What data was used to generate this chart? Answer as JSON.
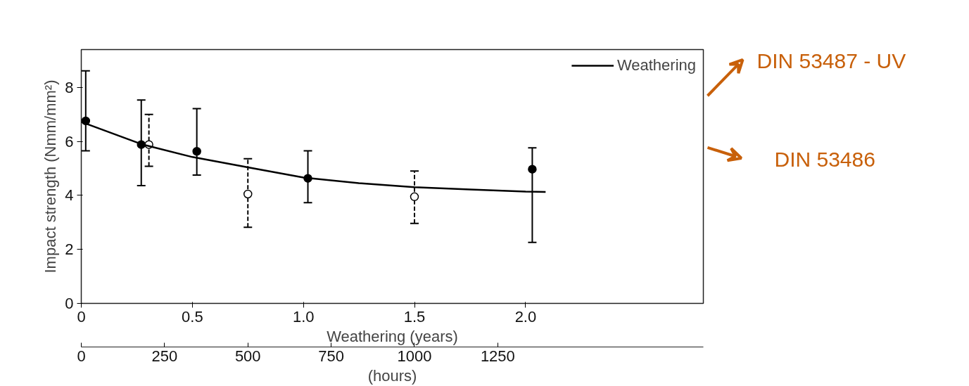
{
  "chart_data": {
    "type": "scatter",
    "xlabel": "Weathering (years)",
    "x2label": "(hours)",
    "ylabel": "Impact strength (Nmm/mm²)",
    "xlim": [
      0,
      2.8
    ],
    "xticks": [
      {
        "value": 0,
        "label": "0"
      },
      0.5,
      {
        "value": 1,
        "label": "1.0"
      },
      1.5,
      {
        "value": 2,
        "label": "2.0"
      }
    ],
    "x2lim": [
      0,
      1867
    ],
    "x2ticks": [
      0,
      250,
      500,
      750,
      1000,
      1250
    ],
    "ylim": [
      0,
      9.4
    ],
    "yticks": [
      0,
      2,
      4,
      6,
      8
    ],
    "grid": false,
    "legend": "top right",
    "marker": "circle",
    "series": [
      {
        "name": "Weathering",
        "color": "#000000",
        "line_style": "solid",
        "x": [
          0.02,
          0.27,
          0.52,
          1.02,
          2.03
        ],
        "values": [
          6.76,
          5.88,
          5.63,
          4.63,
          4.97
        ],
        "errors": [
          [
            5.65,
            8.61
          ],
          [
            4.36,
            7.53
          ],
          [
            4.75,
            7.21
          ],
          [
            3.73,
            5.65
          ],
          [
            2.26,
            5.76
          ]
        ]
      },
      {
        "axis": "x2",
        "color": "#000000",
        "line_style": "dashed",
        "x": [
          203,
          500,
          1000
        ],
        "values": [
          5.88,
          4.05,
          3.95
        ],
        "errors": [
          [
            5.08,
            7.0
          ],
          [
            2.82,
            5.36
          ],
          [
            2.96,
            4.9
          ]
        ]
      },
      {
        "type": "line",
        "color": "#000000",
        "line_style": "solid",
        "marker": "none",
        "x": [
          0,
          0.27,
          0.5,
          0.75,
          1.0,
          1.25,
          1.5,
          1.75,
          2.0,
          2.09
        ],
        "values": [
          6.72,
          5.9,
          5.42,
          5.04,
          4.66,
          4.45,
          4.3,
          4.22,
          4.14,
          4.13
        ]
      }
    ],
    "annotations": [
      "DIN 53487 - UV",
      "DIN 53486"
    ]
  }
}
